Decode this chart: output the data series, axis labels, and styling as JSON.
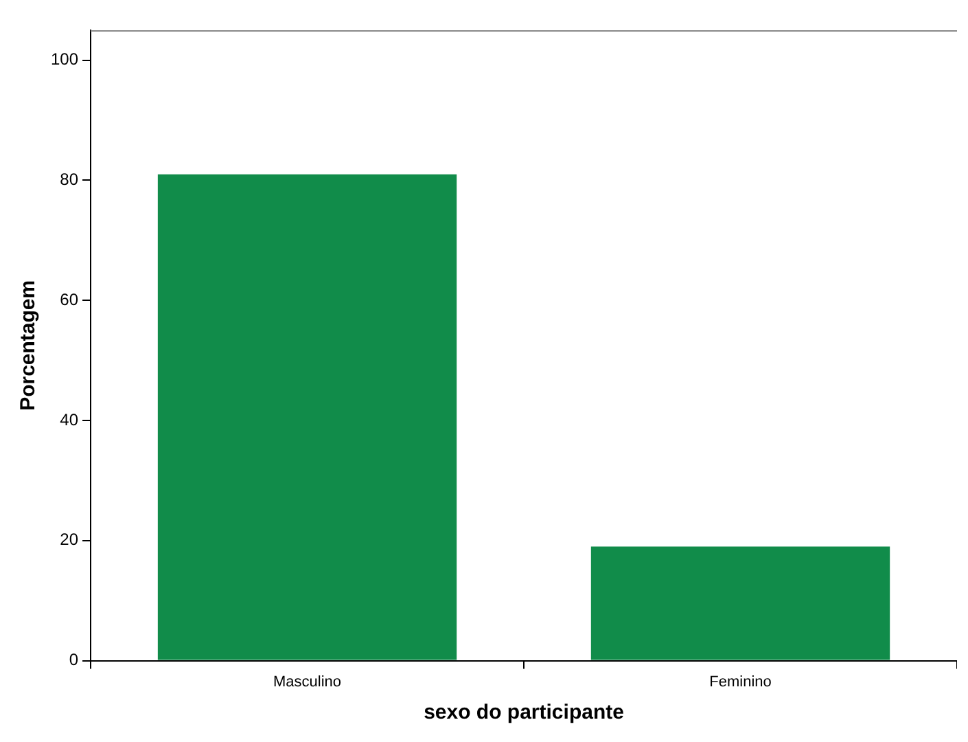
{
  "chart_data": {
    "type": "bar",
    "xlabel": "sexo do participante",
    "ylabel": "Porcentagem",
    "categories": [
      "Masculino",
      "Feminino"
    ],
    "values": [
      81,
      19
    ],
    "color": "#118c4a",
    "ylim": [
      0,
      105
    ],
    "yticks": [
      0,
      20,
      40,
      60,
      80,
      100
    ],
    "grid": false,
    "legend": false
  }
}
